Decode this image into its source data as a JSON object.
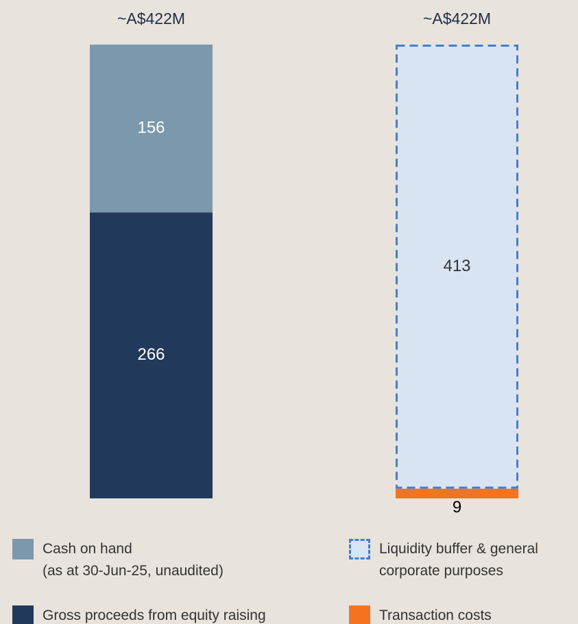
{
  "chart_data": {
    "type": "stacked_bar",
    "categories": [
      null,
      null
    ],
    "total_labels": [
      "~A$422M",
      "~A$422M"
    ],
    "ylim": [
      0,
      422
    ],
    "series": [
      {
        "name": "Gross proceeds from equity raising",
        "color": "#213a5c",
        "label_color": "#ffffff",
        "values": [
          266,
          null
        ]
      },
      {
        "name": "Cash on hand\n(as at 30-Jun-25, unaudited)",
        "color": "#7b98ad",
        "label_color": "#ffffff",
        "values": [
          156,
          null
        ]
      },
      {
        "name": "Transaction costs",
        "color": "#f47321",
        "label_color": "#000000",
        "values": [
          null,
          9
        ]
      },
      {
        "name": "Liquidity buffer & general\ncorporate purposes",
        "color": "#d9e4f2",
        "border_color": "#4a7cc7",
        "style": "dashed",
        "label_color": "#333333",
        "values": [
          null,
          413
        ]
      }
    ]
  }
}
